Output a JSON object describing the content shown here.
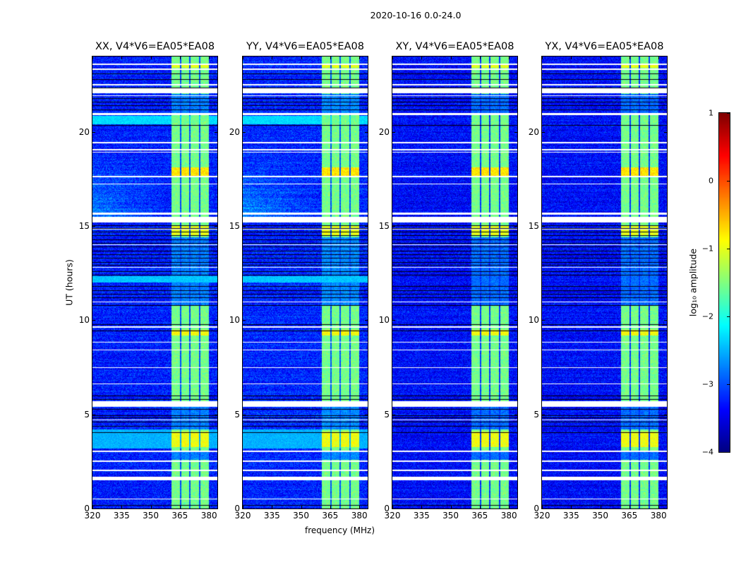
{
  "chart_data": {
    "type": "heatmap",
    "title": "2020-10-16 0.0-24.0",
    "xlabel": "frequency (MHz)",
    "ylabel": "UT (hours)",
    "xlim": [
      320,
      384.3
    ],
    "ylim": [
      0,
      24
    ],
    "xticks": [
      "320",
      "335",
      "350",
      "365",
      "380"
    ],
    "xtick_values": [
      320,
      335,
      350,
      365,
      380
    ],
    "yticks": [
      "0",
      "5",
      "10",
      "15",
      "20"
    ],
    "ytick_values": [
      0,
      5,
      10,
      15,
      20
    ],
    "panels": [
      {
        "title": "XX, V4*V6=EA05*EA08",
        "base": -3.25,
        "auto_corr_glow": true
      },
      {
        "title": "YY, V4*V6=EA05*EA08",
        "base": -3.2,
        "auto_corr_glow": true
      },
      {
        "title": "XY, V4*V6=EA05*EA08",
        "base": -3.35,
        "auto_corr_glow": false
      },
      {
        "title": "YX, V4*V6=EA05*EA08",
        "base": -3.35,
        "auto_corr_glow": false
      }
    ],
    "colorbar": {
      "label": "log₁₀ amplitude",
      "range": [
        -4,
        1
      ],
      "ticks": [
        "1",
        "0",
        "−1",
        "−2",
        "−3",
        "−4"
      ],
      "tick_values": [
        1,
        0,
        -1,
        -2,
        -3,
        -4
      ],
      "colormap": "jet"
    },
    "flagged_ut_intervals": [
      [
        23.55,
        23.62
      ],
      [
        23.3,
        23.36
      ],
      [
        22.48,
        22.52
      ],
      [
        22.05,
        22.3
      ],
      [
        21.9,
        21.95
      ],
      [
        20.88,
        21.0
      ],
      [
        19.4,
        19.47
      ],
      [
        19.02,
        19.08
      ],
      [
        18.9,
        18.95
      ],
      [
        17.6,
        17.66
      ],
      [
        17.2,
        17.26
      ],
      [
        15.6,
        15.7
      ],
      [
        15.2,
        15.48
      ],
      [
        14.8,
        14.84
      ],
      [
        14.0,
        14.04
      ],
      [
        12.8,
        12.84
      ],
      [
        10.95,
        11.0
      ],
      [
        9.6,
        9.66
      ],
      [
        8.8,
        8.84
      ],
      [
        8.4,
        8.45
      ],
      [
        7.45,
        7.5
      ],
      [
        6.6,
        6.64
      ],
      [
        5.4,
        5.7
      ],
      [
        4.7,
        4.73
      ],
      [
        4.15,
        4.18
      ],
      [
        3.55,
        3.58
      ],
      [
        3.0,
        3.06
      ],
      [
        2.48,
        2.54
      ],
      [
        2.0,
        2.05
      ],
      [
        1.5,
        1.7
      ],
      [
        0.47,
        0.52
      ]
    ],
    "dark_ut_rows": [
      23.1,
      22.8,
      22.35,
      21.8,
      21.6,
      21.4,
      21.2,
      20.35,
      15.05,
      14.9,
      14.7,
      14.5,
      14.3,
      14.1,
      13.9,
      13.7,
      13.5,
      13.3,
      13.1,
      12.95,
      12.6,
      12.4,
      11.8,
      11.6,
      11.4,
      11.2,
      10.8,
      9.8,
      9.45,
      6.0,
      5.8,
      5.3,
      4.95,
      4.85,
      4.6,
      4.4,
      4.05,
      0.2
    ],
    "bright_ut_intervals": [
      [
        20.4,
        20.85,
        -2.3
      ],
      [
        12.0,
        12.35,
        -2.4
      ],
      [
        3.2,
        4.2,
        -2.5
      ]
    ],
    "rfi": {
      "freq_range": [
        360.7,
        380.0
      ],
      "notches_mhz": [
        365.4,
        370.2,
        375.3
      ],
      "level": -1.55,
      "off_ut_intervals": [
        [
          10.8,
          11.0
        ],
        [
          11.0,
          14.4
        ],
        [
          5.0,
          5.4
        ],
        [
          4.2,
          5.0
        ],
        [
          2.6,
          3.0
        ],
        [
          20.9,
          22.0
        ]
      ],
      "strong_ut_intervals": [
        [
          3.25,
          4.1,
          -0.95
        ],
        [
          14.5,
          15.0,
          -1.0
        ],
        [
          17.6,
          18.1,
          -0.75
        ],
        [
          9.2,
          9.5,
          -0.9
        ],
        [
          23.4,
          23.6,
          -1.0
        ]
      ]
    }
  }
}
